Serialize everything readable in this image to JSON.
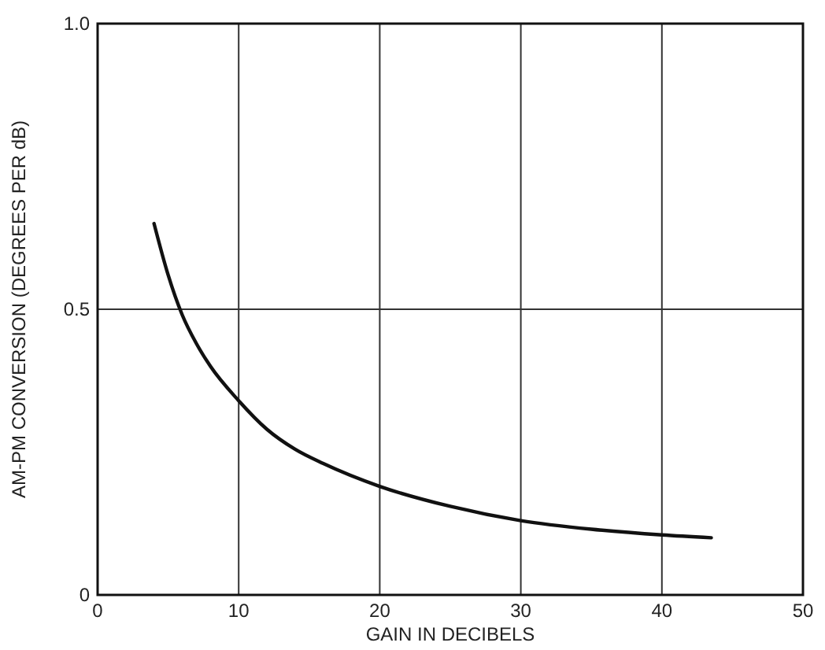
{
  "chart_data": {
    "type": "line",
    "xlabel": "GAIN IN DECIBELS",
    "ylabel": "AM-PM CONVERSION (DEGREES PER dB)",
    "xlim": [
      0,
      50
    ],
    "ylim": [
      0,
      1
    ],
    "xticks": [
      0,
      10,
      20,
      30,
      40,
      50
    ],
    "yticks": [
      0,
      0.5,
      {
        "value": 1,
        "label": "1.0"
      }
    ],
    "grid": true,
    "series": [
      {
        "color": "#111111",
        "x": [
          4,
          5,
          6,
          7,
          8,
          10,
          12,
          14,
          16,
          20,
          25,
          30,
          35,
          40,
          43.5
        ],
        "values": [
          0.65,
          0.56,
          0.49,
          0.44,
          0.4,
          0.34,
          0.29,
          0.255,
          0.23,
          0.19,
          0.155,
          0.13,
          0.115,
          0.105,
          0.1
        ]
      }
    ]
  }
}
